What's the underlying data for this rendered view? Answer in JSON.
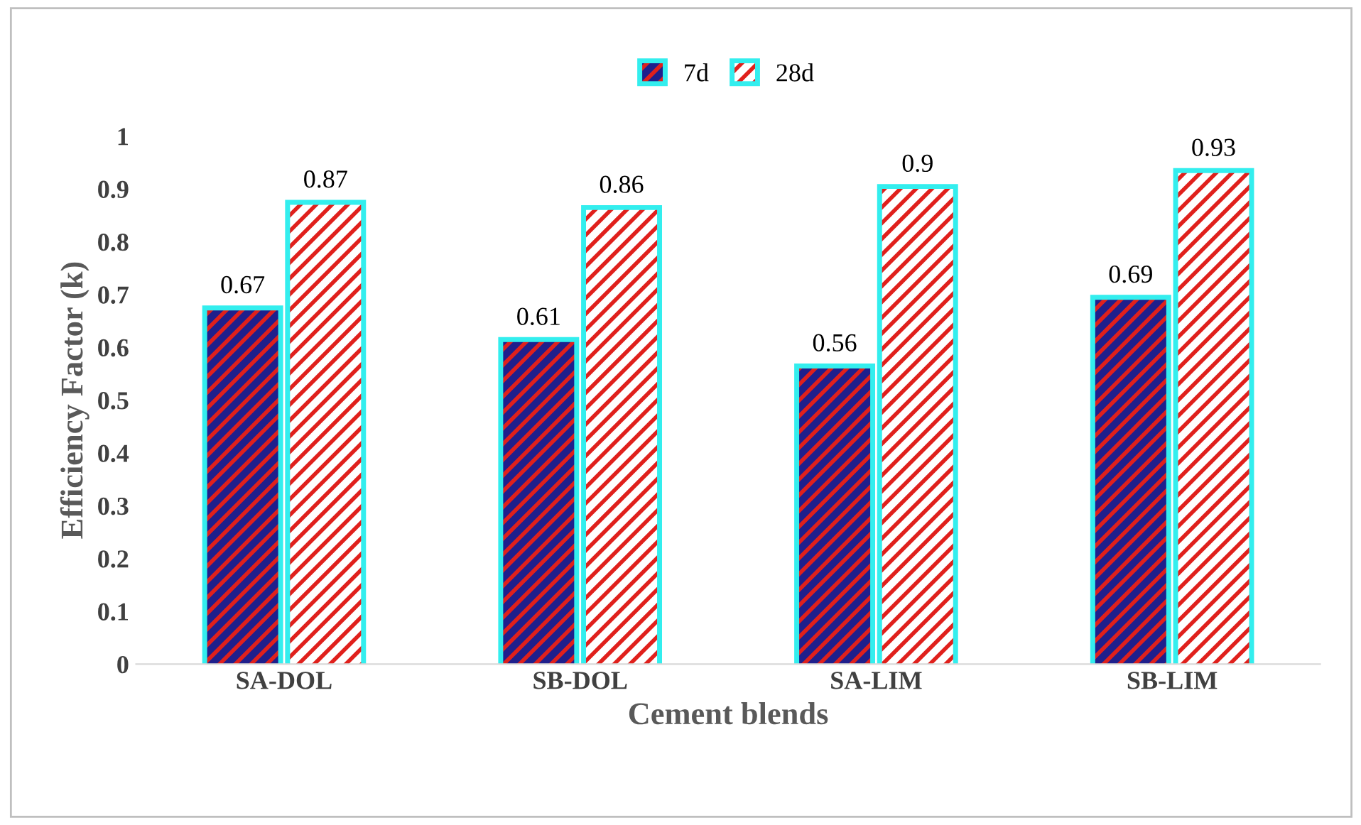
{
  "chart_data": {
    "type": "bar",
    "xlabel": "Cement blends",
    "ylabel": "Efficiency Factor (k)",
    "categories": [
      "SA-DOL",
      "SB-DOL",
      "SA-LIM",
      "SB-LIM"
    ],
    "series": [
      {
        "name": "7d",
        "color": "#1f1f8c",
        "values": [
          0.67,
          0.61,
          0.56,
          0.69
        ]
      },
      {
        "name": "28d",
        "color": "#ffffff",
        "values": [
          0.87,
          0.86,
          0.9,
          0.93
        ]
      }
    ],
    "ylim": [
      0,
      1
    ],
    "yticks": [
      0,
      0.1,
      0.2,
      0.3,
      0.4,
      0.5,
      0.6,
      0.7,
      0.8,
      0.9,
      1
    ],
    "data_labels": true,
    "grid": false,
    "legend": "top"
  }
}
